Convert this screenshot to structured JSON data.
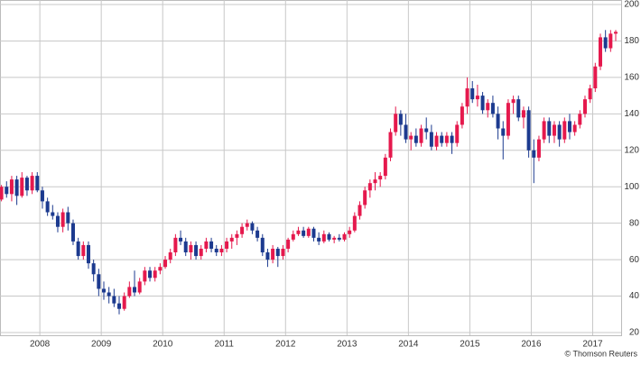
{
  "chart_data": {
    "type": "candlestick",
    "source": "© Thomson Reuters",
    "categories": [
      null,
      null,
      null,
      null,
      null,
      null,
      null,
      null,
      "2008",
      null,
      null,
      null,
      null,
      null,
      null,
      null,
      null,
      null,
      null,
      null,
      "2009",
      null,
      null,
      null,
      null,
      null,
      null,
      null,
      null,
      null,
      null,
      null,
      "2010",
      null,
      null,
      null,
      null,
      null,
      null,
      null,
      null,
      null,
      null,
      null,
      "2011",
      null,
      null,
      null,
      null,
      null,
      null,
      null,
      null,
      null,
      null,
      null,
      "2012",
      null,
      null,
      null,
      null,
      null,
      null,
      null,
      null,
      null,
      null,
      null,
      "2013",
      null,
      null,
      null,
      null,
      null,
      null,
      null,
      null,
      null,
      null,
      null,
      "2014",
      null,
      null,
      null,
      null,
      null,
      null,
      null,
      null,
      null,
      null,
      null,
      "2015",
      null,
      null,
      null,
      null,
      null,
      null,
      null,
      null,
      null,
      null,
      null,
      "2016",
      null,
      null,
      null,
      null,
      null,
      null,
      null,
      null,
      null,
      null,
      null,
      "2017",
      null,
      null,
      null,
      null
    ],
    "open": [
      93,
      100,
      96,
      104,
      95,
      105,
      98,
      106,
      98,
      92,
      86,
      84,
      78,
      86,
      80,
      70,
      62,
      68,
      58,
      52,
      44,
      42,
      40,
      36,
      33,
      40,
      45,
      42,
      48,
      54,
      50,
      54,
      56,
      60,
      64,
      72,
      70,
      64,
      68,
      62,
      66,
      70,
      66,
      64,
      66,
      70,
      72,
      74,
      78,
      80,
      76,
      72,
      64,
      60,
      66,
      62,
      66,
      71,
      74,
      76,
      73,
      77,
      72,
      70,
      74,
      71,
      72,
      71,
      74,
      76,
      84,
      90,
      98,
      102,
      104,
      106,
      116,
      130,
      140,
      134,
      126,
      128,
      124,
      132,
      130,
      122,
      128,
      124,
      128,
      124,
      134,
      144,
      154,
      148,
      150,
      142,
      146,
      140,
      132,
      128,
      146,
      148,
      138,
      142,
      120,
      116,
      126,
      136,
      128,
      134,
      126,
      136,
      130,
      134,
      140,
      148,
      154,
      166,
      182,
      176,
      184
    ],
    "high": [
      101,
      103,
      106,
      106,
      108,
      106,
      108,
      108,
      100,
      94,
      90,
      86,
      88,
      89,
      82,
      72,
      70,
      70,
      60,
      55,
      48,
      45,
      44,
      40,
      42,
      48,
      54,
      50,
      56,
      56,
      56,
      58,
      62,
      66,
      74,
      76,
      72,
      70,
      70,
      68,
      72,
      72,
      68,
      68,
      72,
      74,
      76,
      80,
      82,
      81,
      78,
      74,
      66,
      68,
      67,
      68,
      72,
      76,
      78,
      78,
      78,
      78,
      75,
      76,
      75,
      73,
      74,
      75,
      78,
      86,
      92,
      100,
      104,
      108,
      108,
      118,
      132,
      144,
      142,
      140,
      130,
      132,
      134,
      138,
      134,
      130,
      130,
      130,
      130,
      136,
      146,
      160,
      158,
      156,
      152,
      148,
      150,
      144,
      136,
      148,
      150,
      150,
      144,
      144,
      126,
      128,
      138,
      138,
      136,
      136,
      138,
      140,
      136,
      142,
      150,
      156,
      168,
      184,
      186,
      186,
      186
    ],
    "low": [
      92,
      94,
      92,
      90,
      94,
      95,
      96,
      97,
      88,
      84,
      82,
      75,
      75,
      76,
      68,
      60,
      60,
      55,
      48,
      40,
      38,
      36,
      34,
      30,
      32,
      39,
      40,
      41,
      46,
      48,
      48,
      52,
      55,
      58,
      62,
      68,
      62,
      60,
      60,
      60,
      64,
      64,
      62,
      62,
      64,
      66,
      68,
      72,
      76,
      74,
      70,
      62,
      56,
      58,
      56,
      60,
      64,
      70,
      73,
      72,
      72,
      70,
      68,
      69,
      70,
      69,
      70,
      70,
      72,
      75,
      82,
      88,
      94,
      98,
      100,
      104,
      114,
      128,
      128,
      124,
      120,
      122,
      122,
      126,
      120,
      120,
      122,
      122,
      118,
      122,
      132,
      140,
      146,
      144,
      140,
      138,
      138,
      126,
      115,
      126,
      140,
      136,
      132,
      116,
      102,
      114,
      124,
      124,
      124,
      122,
      124,
      126,
      128,
      132,
      138,
      146,
      152,
      164,
      174,
      174,
      180
    ],
    "close": [
      100,
      96,
      104,
      95,
      105,
      98,
      106,
      98,
      92,
      86,
      84,
      78,
      86,
      80,
      70,
      62,
      68,
      58,
      52,
      44,
      42,
      40,
      36,
      33,
      40,
      45,
      42,
      48,
      54,
      50,
      54,
      56,
      60,
      64,
      72,
      70,
      64,
      68,
      62,
      66,
      70,
      66,
      64,
      66,
      70,
      72,
      74,
      78,
      80,
      76,
      72,
      64,
      60,
      66,
      62,
      66,
      71,
      74,
      76,
      73,
      77,
      72,
      70,
      74,
      71,
      72,
      71,
      74,
      76,
      84,
      90,
      98,
      102,
      104,
      106,
      116,
      130,
      140,
      134,
      126,
      128,
      124,
      132,
      130,
      122,
      128,
      124,
      128,
      124,
      134,
      144,
      154,
      148,
      150,
      142,
      146,
      140,
      132,
      128,
      146,
      148,
      138,
      142,
      120,
      116,
      126,
      136,
      128,
      134,
      126,
      136,
      130,
      134,
      140,
      148,
      154,
      166,
      182,
      176,
      184,
      185
    ],
    "up_color": "#e5194d",
    "down_color": "#1c3a8f",
    "ylim": [
      20,
      200
    ],
    "yticks": [
      20,
      40,
      60,
      80,
      100,
      120,
      140,
      160,
      180,
      200
    ],
    "grid": true
  }
}
